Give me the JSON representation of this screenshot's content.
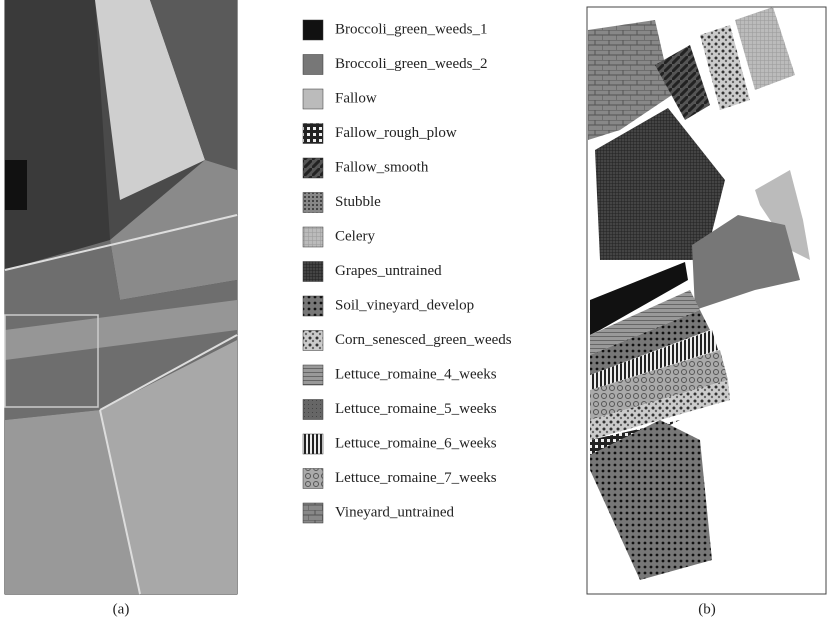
{
  "figure": {
    "captions": [
      "(a)",
      "(b)"
    ],
    "legend": [
      "Broccoli_green_weeds_1",
      "Broccoli_green_weeds_2",
      "Fallow",
      "Fallow_rough_plow",
      "Fallow_smooth",
      "Stubble",
      "Celery",
      "Grapes_untrained",
      "Soil_vineyard_develop",
      "Corn_senesced_green_weeds",
      "Lettuce_romaine_4_weeks",
      "Lettuce_romaine_5_weeks",
      "Lettuce_romaine_6_weeks",
      "Lettuce_romaine_7_weeks",
      "Vineyard_untrained"
    ]
  }
}
